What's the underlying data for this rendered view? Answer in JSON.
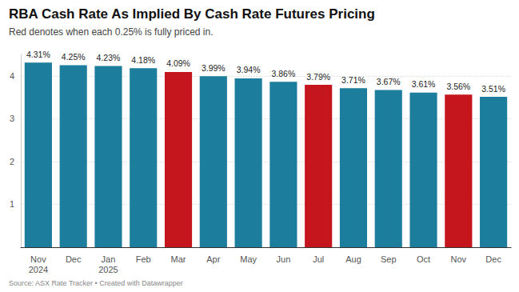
{
  "chart_data": {
    "type": "bar",
    "title": "RBA Cash Rate As Implied By Cash Rate Futures Pricing",
    "subtitle": "Red denotes when each 0.25% is fully priced in.",
    "source": "Source: ASX Rate Tracker • Created with Datawrapper",
    "categories": [
      "Nov\n2024",
      "Dec",
      "Jan\n2025",
      "Feb",
      "Mar",
      "Apr",
      "May",
      "Jun",
      "Jul",
      "Aug",
      "Sep",
      "Oct",
      "Nov",
      "Dec"
    ],
    "values": [
      4.31,
      4.25,
      4.23,
      4.18,
      4.09,
      3.99,
      3.94,
      3.86,
      3.79,
      3.71,
      3.67,
      3.61,
      3.56,
      3.51
    ],
    "value_labels": [
      "4.31%",
      "4.25%",
      "4.23%",
      "4.18%",
      "4.09%",
      "3.99%",
      "3.94%",
      "3.86%",
      "3.79%",
      "3.71%",
      "3.67%",
      "3.61%",
      "3.56%",
      "3.51%"
    ],
    "colors": [
      "#1d7d9c",
      "#1d7d9c",
      "#1d7d9c",
      "#1d7d9c",
      "#c4161c",
      "#1d7d9c",
      "#1d7d9c",
      "#1d7d9c",
      "#c4161c",
      "#1d7d9c",
      "#1d7d9c",
      "#1d7d9c",
      "#c4161c",
      "#1d7d9c"
    ],
    "ylim": [
      0,
      4.5
    ],
    "yticks": [
      1,
      2,
      3,
      4
    ],
    "grid": true,
    "data_labels": true
  }
}
